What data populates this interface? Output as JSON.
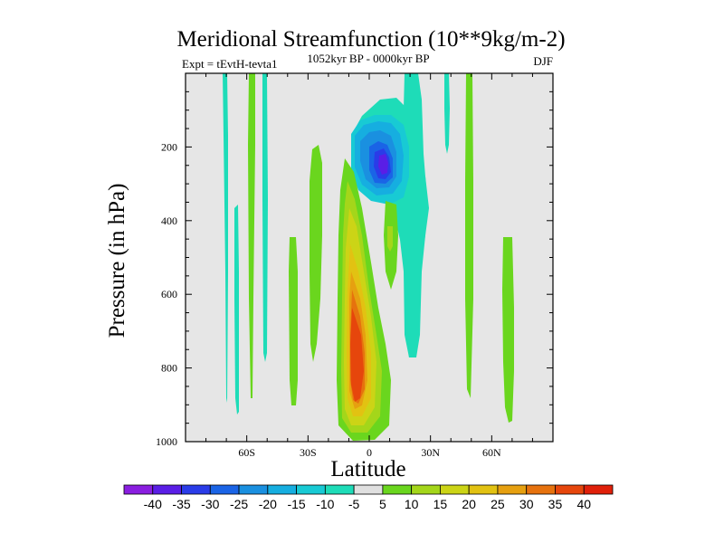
{
  "chart_data": {
    "type": "contour",
    "title": "Meridional Streamfunction (10**9kg/m-2)",
    "left_string": "Expt = tEvtH-tevta1",
    "center_string": "1052kyr BP - 0000kyr BP",
    "right_string": "DJF",
    "xlabel": "Latitude",
    "ylabel": "Pressure (in hPa)",
    "xlim": [
      -90,
      90
    ],
    "ylim": [
      1000,
      0
    ],
    "x_ticks": [
      {
        "value": -60,
        "label": "60S"
      },
      {
        "value": -30,
        "label": "30S"
      },
      {
        "value": 0,
        "label": "0"
      },
      {
        "value": 30,
        "label": "30N"
      },
      {
        "value": 60,
        "label": "60N"
      }
    ],
    "y_ticks": [
      {
        "value": 200,
        "label": "200"
      },
      {
        "value": 400,
        "label": "400"
      },
      {
        "value": 600,
        "label": "600"
      },
      {
        "value": 800,
        "label": "800"
      },
      {
        "value": 1000,
        "label": "1000"
      }
    ],
    "contour_levels": [
      -40,
      -35,
      -30,
      -25,
      -20,
      -15,
      -10,
      -5,
      5,
      10,
      15,
      20,
      25,
      30,
      35,
      40
    ],
    "colorbar_labels": [
      "-40",
      "-35",
      "-30",
      "-25",
      "-20",
      "-15",
      "-10",
      "-5",
      "5",
      "10",
      "15",
      "20",
      "25",
      "30",
      "35",
      "40"
    ],
    "colorbar_colors": [
      "#8a1ee0",
      "#5a1ee6",
      "#2a3ce8",
      "#1a64e6",
      "#1a90e0",
      "#16aee0",
      "#18cad4",
      "#1edcb8",
      "#e0e0e0",
      "#6ad61e",
      "#a4d61a",
      "#ccd416",
      "#e2c212",
      "#e6a010",
      "#e6720e",
      "#e6460c",
      "#e0200a"
    ],
    "background_color": "#e6e6e6",
    "features": [
      {
        "name": "negative-cell",
        "kind": "negative",
        "lat_range": [
          -5,
          15
        ],
        "p_range": [
          70,
          320
        ],
        "min_value": -35,
        "fill": "#18cad4"
      },
      {
        "name": "negative-core-1",
        "kind": "negative",
        "lat_range": [
          -4,
          8
        ],
        "p_range": [
          120,
          300
        ],
        "value": -15,
        "fill": "#1a90e0"
      },
      {
        "name": "negative-core-2",
        "kind": "negative",
        "lat_range": [
          3,
          10
        ],
        "p_range": [
          170,
          280
        ],
        "value": -25,
        "fill": "#2a3ce8"
      },
      {
        "name": "positive-cell",
        "kind": "positive",
        "lat_range": [
          -12,
          8
        ],
        "p_range": [
          200,
          985
        ],
        "max_value": 40,
        "fill": "#6ad61e"
      },
      {
        "name": "positive-core-1",
        "kind": "positive",
        "lat_range": [
          -9,
          4
        ],
        "p_range": [
          430,
          970
        ],
        "value": 20,
        "fill": "#e2c212"
      },
      {
        "name": "positive-core-2",
        "kind": "positive",
        "lat_range": [
          -7,
          2
        ],
        "p_range": [
          600,
          950
        ],
        "value": 35,
        "fill": "#e6460c"
      }
    ]
  }
}
